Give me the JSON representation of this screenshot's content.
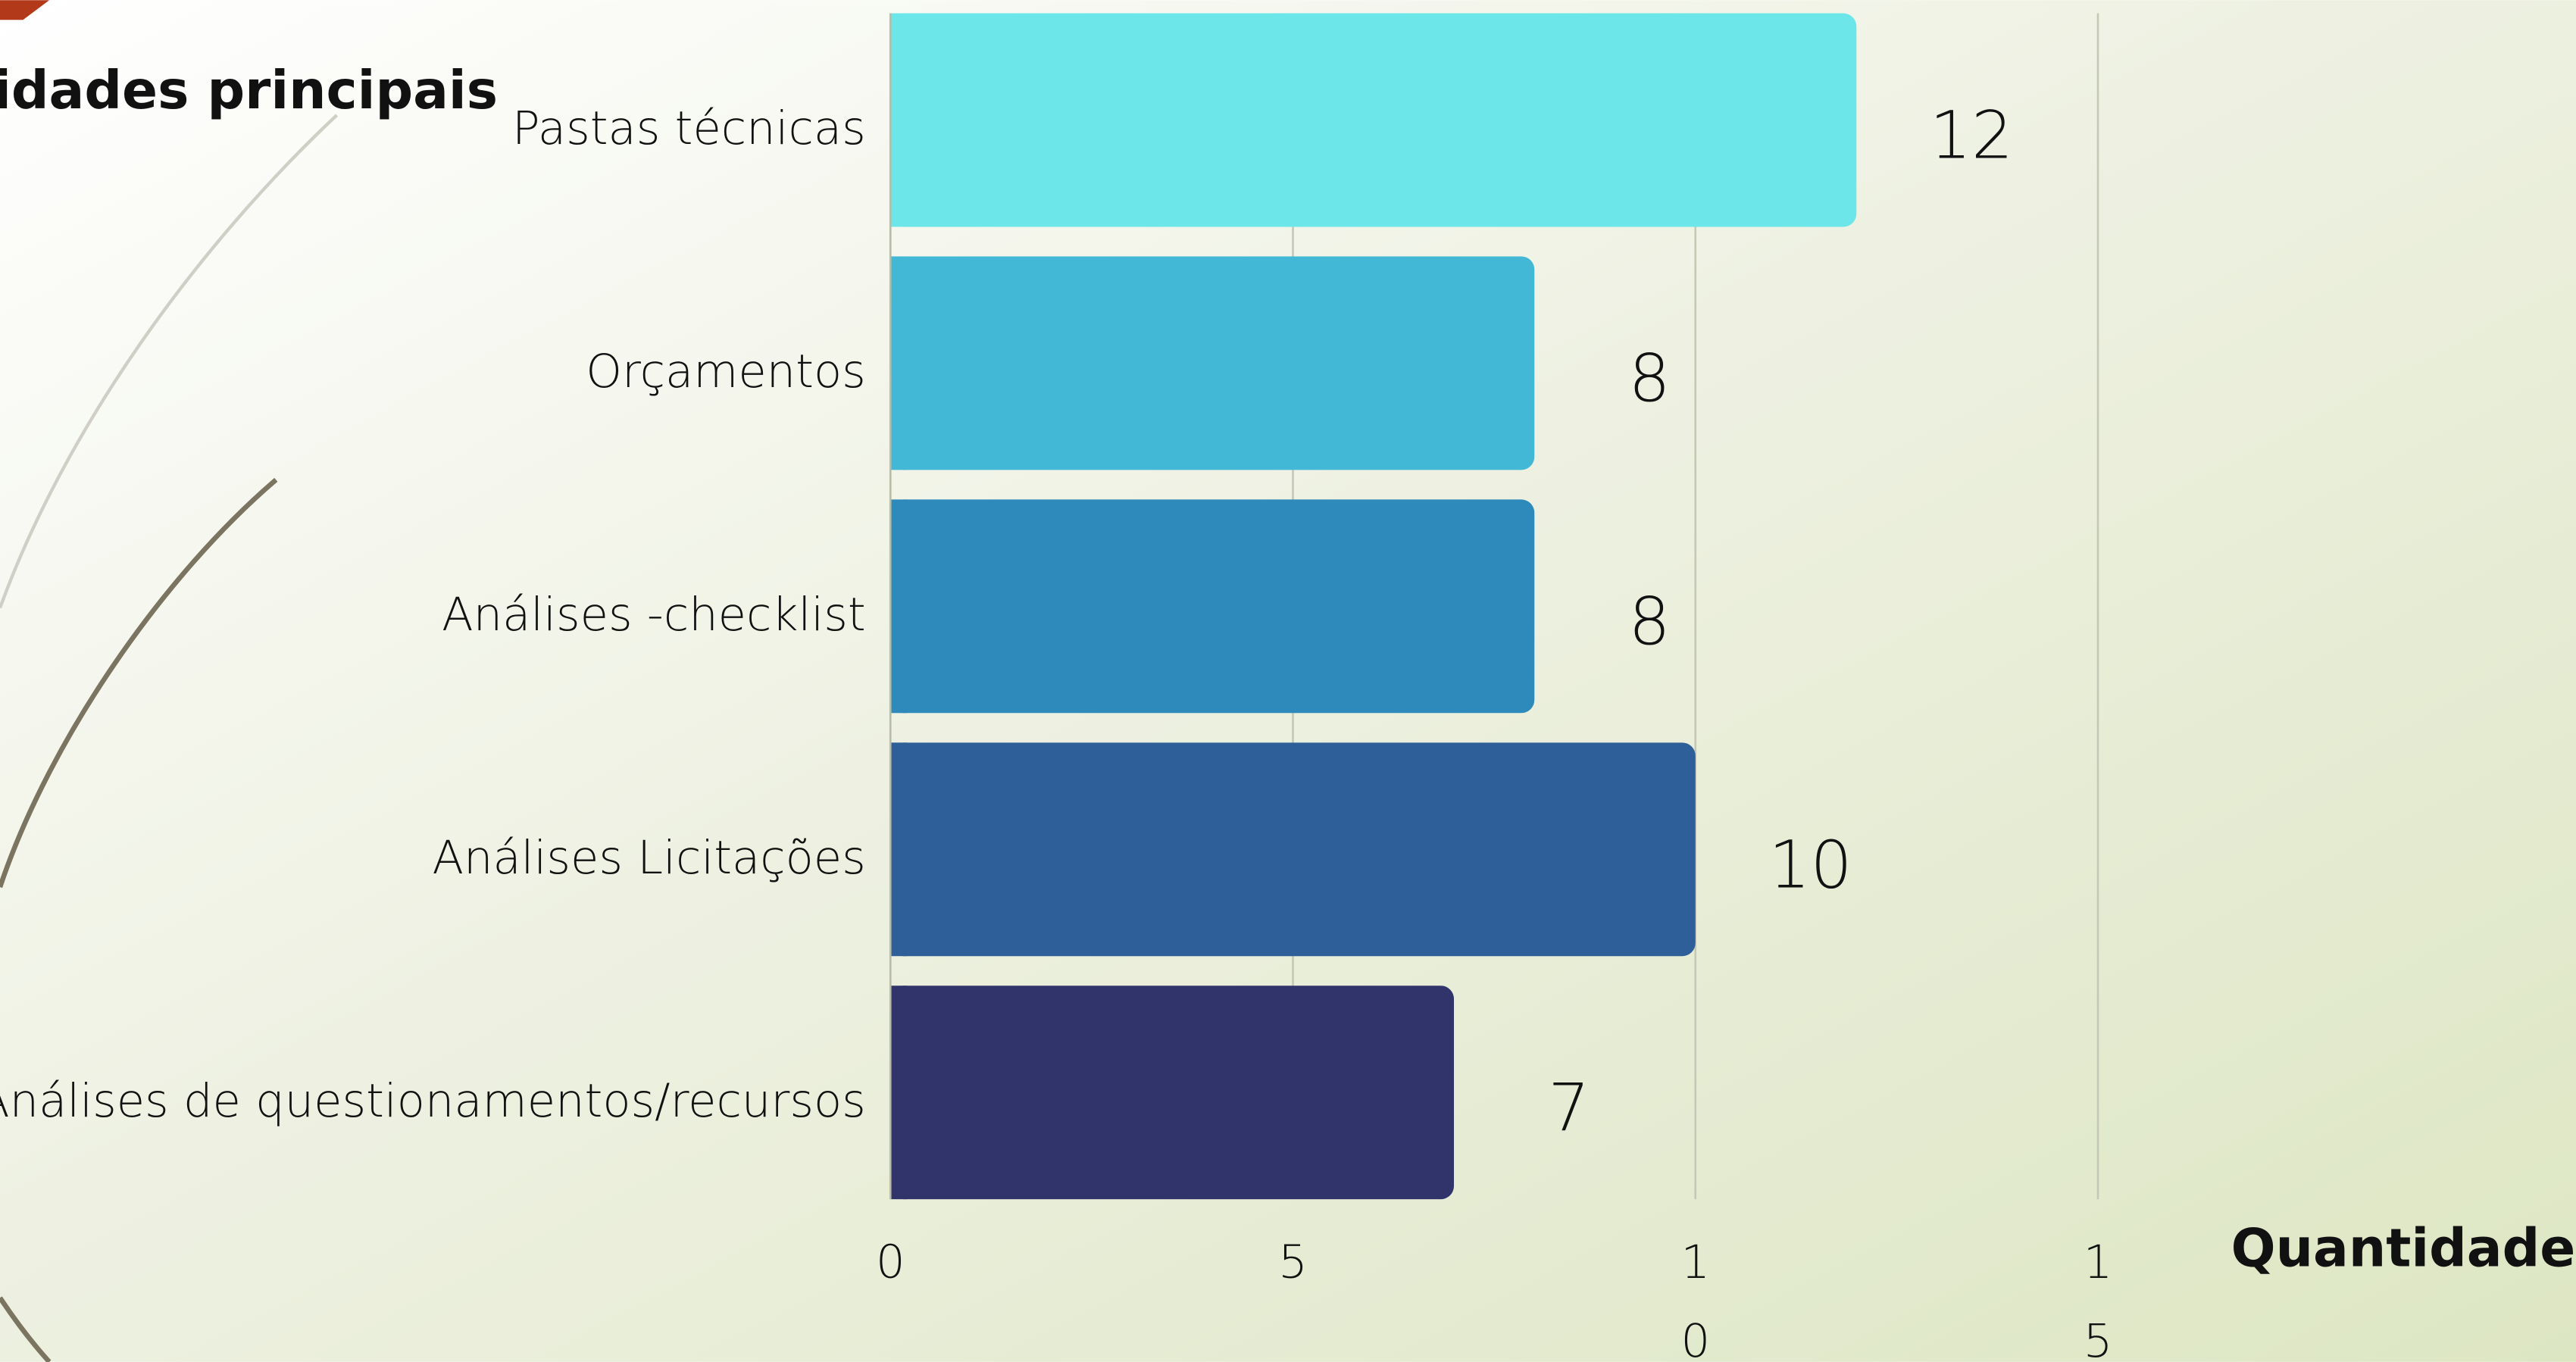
{
  "chart_data": {
    "type": "bar",
    "orientation": "horizontal",
    "title": "vidades principais",
    "x_label": "Quantidade",
    "categories": [
      "Pastas técnicas",
      "Orçamentos",
      "Análises -checklist",
      "Análises Licitações",
      "Análises de questionamentos/recursos"
    ],
    "values": [
      12,
      8,
      8,
      10,
      7
    ],
    "colors": [
      "#6ce6e8",
      "#43b7d6",
      "#2d8aba",
      "#2e5f98",
      "#31346b"
    ],
    "xlim": [
      0,
      15
    ],
    "xticks": [
      0,
      5,
      10,
      15
    ],
    "grid": true
  }
}
